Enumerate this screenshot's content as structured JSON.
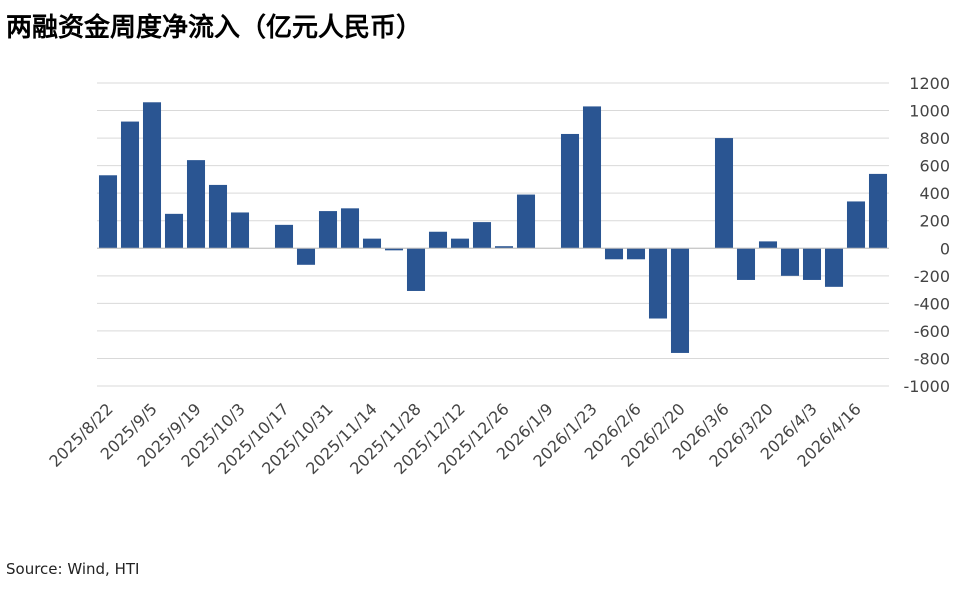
{
  "chart_data": {
    "type": "bar",
    "title": "两融资金周度净流入（亿元人民币）",
    "source": "Source: Wind, HTI",
    "categories": [
      "2025/8/22",
      null,
      "2025/9/5",
      null,
      "2025/9/19",
      null,
      "2025/10/3",
      null,
      "2025/10/17",
      null,
      "2025/10/31",
      null,
      "2025/11/14",
      null,
      "2025/11/28",
      null,
      "2025/12/12",
      null,
      "2025/12/26",
      null,
      "2026/1/9",
      null,
      "2026/1/23",
      null,
      "2026/2/6",
      null,
      "2026/2/20",
      null,
      "2026/3/6",
      null,
      "2026/3/20",
      null,
      "2026/4/3",
      null,
      "2026/4/16",
      null
    ],
    "values": [
      530,
      920,
      1060,
      250,
      640,
      460,
      260,
      null,
      170,
      -120,
      270,
      290,
      70,
      -15,
      -310,
      120,
      70,
      190,
      15,
      390,
      null,
      830,
      1030,
      -80,
      -80,
      -510,
      -760,
      null,
      800,
      -230,
      50,
      -200,
      -230,
      -280,
      340,
      540
    ],
    "color": "#2a5592",
    "ylim": [
      -1000,
      1200
    ],
    "yticks": [
      -1000,
      -800,
      -600,
      -400,
      -200,
      0,
      200,
      400,
      600,
      800,
      1000,
      1200
    ],
    "grid": true
  }
}
